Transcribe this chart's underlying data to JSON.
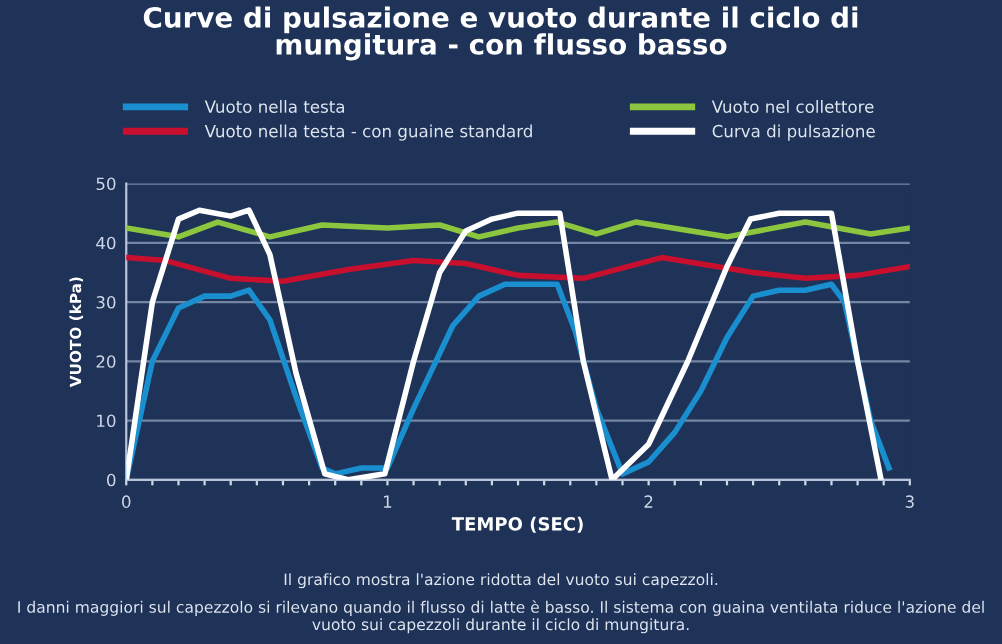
{
  "chart_data": {
    "type": "line",
    "title": "Curve di pulsazione e vuoto durante il ciclo di\nmungitura - con flusso basso",
    "xlabel": "TEMPO (SEC)",
    "ylabel": "VUOTO (kPa)",
    "annotations": [
      "Il grafico mostra l'azione ridotta del vuoto sui capezzoli.",
      "I danni maggiori sul capezzolo si rilevano quando il flusso di latte è basso. Il sistema con guaina ventilata riduce l'azione del vuoto sui capezzoli durante il ciclo di mungitura."
    ],
    "series": [
      {
        "name": "Vuoto nella testa",
        "color": "#1a8fd0",
        "x": [
          0,
          0.1,
          0.2,
          0.3,
          0.4,
          0.47,
          0.55,
          0.65,
          0.75,
          0.8,
          0.9,
          1.0,
          1.1,
          1.25,
          1.35,
          1.45,
          1.55,
          1.65,
          1.72,
          1.8,
          1.9,
          2.0,
          2.1,
          2.2,
          2.3,
          2.4,
          2.5,
          2.6,
          2.7,
          2.75,
          2.85,
          2.92
        ],
        "values": [
          0,
          20,
          29,
          31,
          31,
          32,
          27,
          14,
          2,
          1,
          2,
          2,
          12,
          26,
          31,
          33,
          33,
          33,
          25,
          12,
          1,
          3,
          8,
          15,
          24,
          31,
          32,
          32,
          33,
          30,
          10,
          2
        ]
      },
      {
        "name": "Vuoto nella testa - con guaine standard",
        "color": "#c8102e",
        "x": [
          0,
          0.15,
          0.4,
          0.6,
          0.85,
          1.1,
          1.3,
          1.5,
          1.75,
          2.05,
          2.4,
          2.6,
          2.8,
          3.0
        ],
        "values": [
          37.5,
          37,
          34,
          33.5,
          35.5,
          37,
          36.5,
          34.5,
          34,
          37.5,
          35,
          34,
          34.5,
          36
        ]
      },
      {
        "name": "Vuoto nel collettore",
        "color": "#8cc63f",
        "x": [
          0,
          0.2,
          0.35,
          0.55,
          0.75,
          1.0,
          1.2,
          1.35,
          1.5,
          1.65,
          1.8,
          1.95,
          2.3,
          2.6,
          2.85,
          3.0
        ],
        "values": [
          42.5,
          41,
          43.5,
          41,
          43,
          42.5,
          43,
          41,
          42.5,
          43.5,
          41.5,
          43.5,
          41,
          43.5,
          41.5,
          42.5
        ]
      },
      {
        "name": "Curva di pulsazione",
        "color": "#ffffff",
        "x": [
          0,
          0.1,
          0.2,
          0.28,
          0.4,
          0.47,
          0.55,
          0.65,
          0.76,
          0.85,
          0.99,
          1.1,
          1.2,
          1.3,
          1.4,
          1.5,
          1.66,
          1.75,
          1.86,
          2.0,
          2.15,
          2.3,
          2.39,
          2.5,
          2.7,
          2.8,
          2.89
        ],
        "values": [
          0,
          30,
          44,
          45.5,
          44.5,
          45.5,
          38,
          18,
          1,
          0,
          1,
          20,
          35,
          42,
          44,
          45,
          45,
          20,
          0,
          6,
          20,
          36,
          44,
          45,
          45,
          20,
          0
        ]
      }
    ],
    "xlim": [
      0,
      3
    ],
    "ylim": [
      0,
      50
    ],
    "yticks": [
      0,
      10,
      20,
      30,
      40,
      50
    ],
    "xticks": [
      0,
      {
        "value": 0.1,
        "label": null
      },
      {
        "value": 0.2,
        "label": null
      },
      {
        "value": 0.3,
        "label": null
      },
      {
        "value": 0.4,
        "label": null
      },
      {
        "value": 0.5,
        "label": null
      },
      {
        "value": 0.6,
        "label": null
      },
      {
        "value": 0.7,
        "label": null
      },
      {
        "value": 0.8,
        "label": null
      },
      {
        "value": 0.9,
        "label": null
      },
      1,
      {
        "value": 1.1,
        "label": null
      },
      {
        "value": 1.2,
        "label": null
      },
      {
        "value": 1.3,
        "label": null
      },
      {
        "value": 1.4,
        "label": null
      },
      {
        "value": 1.5,
        "label": null
      },
      {
        "value": 1.6,
        "label": null
      },
      {
        "value": 1.7,
        "label": null
      },
      {
        "value": 1.8,
        "label": null
      },
      {
        "value": 1.9,
        "label": null
      },
      2,
      {
        "value": 2.1,
        "label": null
      },
      {
        "value": 2.2,
        "label": null
      },
      {
        "value": 2.3,
        "label": null
      },
      {
        "value": 2.4,
        "label": null
      },
      {
        "value": 2.5,
        "label": null
      },
      {
        "value": 2.6,
        "label": null
      },
      {
        "value": 2.7,
        "label": null
      },
      {
        "value": 2.8,
        "label": null
      },
      {
        "value": 2.9,
        "label": null
      },
      3
    ],
    "grid": "y",
    "legend": "top",
    "marker": "none",
    "line_style": "solid"
  }
}
